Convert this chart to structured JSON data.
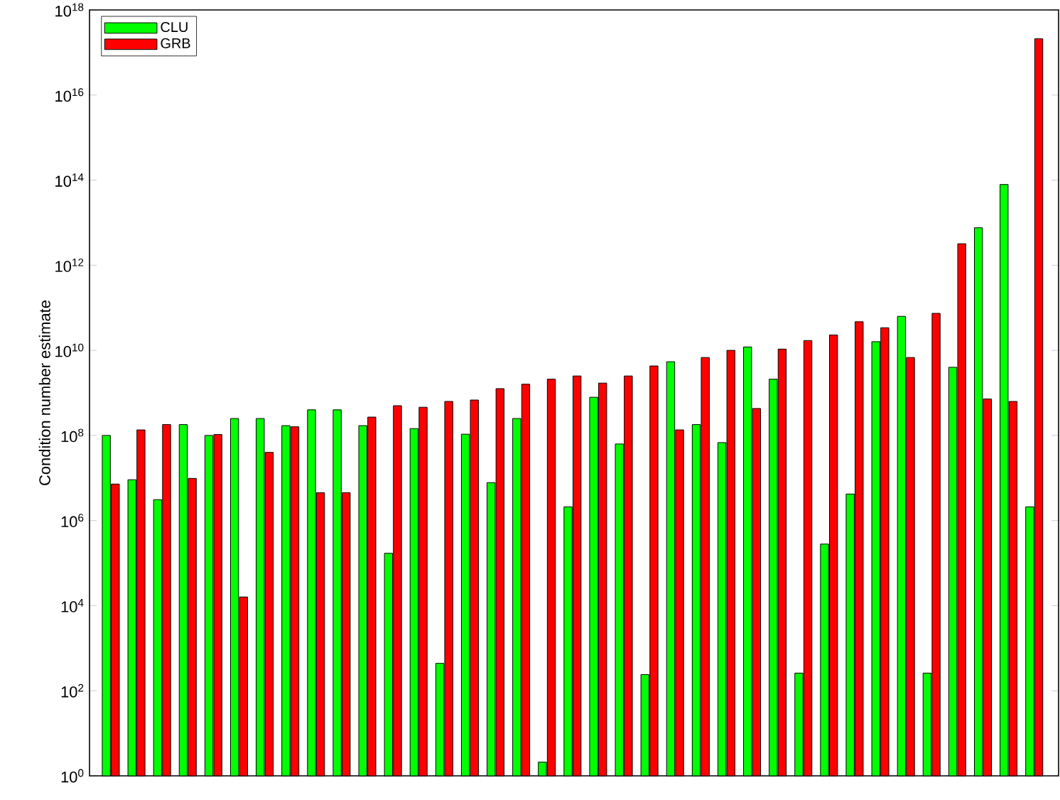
{
  "chart_data": {
    "type": "bar",
    "ylabel": "Condition number estimate",
    "categories": [
      null,
      null,
      null,
      null,
      null,
      null,
      null,
      null,
      null,
      null,
      null,
      null,
      null,
      null,
      null,
      null,
      null,
      null,
      null,
      null,
      null,
      null,
      null,
      null,
      null,
      null,
      null,
      null,
      null,
      null,
      null,
      null,
      null,
      null,
      null,
      null,
      null
    ],
    "series": [
      {
        "name": "CLU",
        "color": "#00ff00",
        "values": [
          100000000.0,
          9100000.0,
          3100000.0,
          180000000.0,
          100000000.0,
          250000000.0,
          250000000.0,
          170000000.0,
          400000000.0,
          400000000.0,
          170000000.0,
          170000.0,
          145000000.0,
          440,
          107000000.0,
          7800000.0,
          250000000.0,
          2.1,
          2100000.0,
          790000000.0,
          63000000.0,
          240,
          5400000000.0,
          180000000.0,
          68000000.0,
          12000000000.0,
          2100000000.0,
          260,
          280000.0,
          4200000.0,
          16000000000.0,
          63000000000.0,
          260,
          4000000000.0,
          7600000000000.0,
          79000000000000.0,
          2100000.0
        ]
      },
      {
        "name": "GRB",
        "color": "#ff0000",
        "values": [
          7200000.0,
          135000000.0,
          180000000.0,
          9800000.0,
          105000000.0,
          16000.0,
          40000000.0,
          160000000.0,
          4500000.0,
          4500000.0,
          270000000.0,
          500000000.0,
          460000000.0,
          630000000.0,
          680000000.0,
          1260000000.0,
          1600000000.0,
          2100000000.0,
          2500000000.0,
          1700000000.0,
          2500000000.0,
          4300000000.0,
          135000000.0,
          6800000000.0,
          10000000000.0,
          430000000.0,
          10700000000.0,
          17000000000.0,
          23000000000.0,
          47000000000.0,
          34000000000.0,
          6800000000.0,
          74000000000.0,
          3200000000000.0,
          720000000.0,
          630000000.0,
          2.1e+17
        ]
      }
    ],
    "log": "y",
    "ylim": [
      1,
      1e+18
    ],
    "yticks": [
      {
        "value": 1,
        "label": "10$^{0}$"
      },
      {
        "value": 100.0,
        "label": "10$^{2}$"
      },
      {
        "value": 10000.0,
        "label": "10$^{4}$"
      },
      {
        "value": 1000000.0,
        "label": "10$^{6}$"
      },
      {
        "value": 100000000.0,
        "label": "10$^{8}$"
      },
      {
        "value": 10000000000.0,
        "label": "10$^{10}$"
      },
      {
        "value": 1000000000000.0,
        "label": "10$^{12}$"
      },
      {
        "value": 100000000000000.0,
        "label": "10$^{14}$"
      },
      {
        "value": 1e+16,
        "label": "10$^{16}$"
      },
      {
        "value": 1e+18,
        "label": "10$^{18}$"
      }
    ],
    "legend": "top left",
    "grid": false
  }
}
